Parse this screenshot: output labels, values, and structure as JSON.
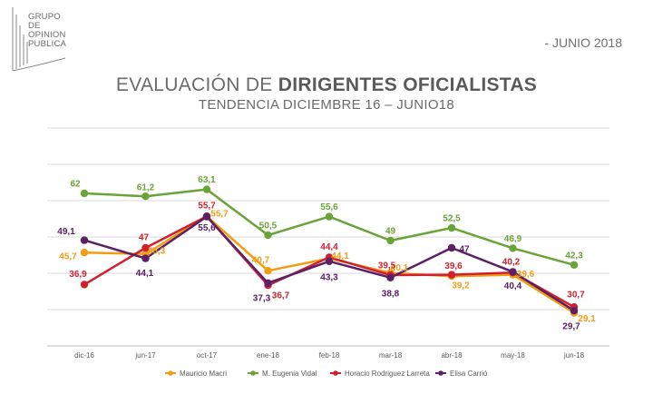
{
  "header": {
    "logo_lines": [
      "GRUPO",
      "DE",
      "OPINION",
      "PUBLICA"
    ],
    "report_date": "- JUNIO 2018"
  },
  "chart_data": {
    "type": "line",
    "title_prefix": "EVALUACIÓN DE ",
    "title_bold": "DIRIGENTES OFICIALISTAS",
    "subtitle": "TENDENCIA DICIEMBRE 16  – JUNIO18",
    "categories": [
      "dic-16",
      "jun-17",
      "oct-17",
      "ene-18",
      "feb-18",
      "mar-18",
      "abr-18",
      "may-18",
      "jun-18"
    ],
    "ylim": [
      20,
      80
    ],
    "grid": true,
    "legend_position": "bottom",
    "series": [
      {
        "name": "Mauricio Macri",
        "color": "#f39c12",
        "values": [
          45.7,
          45.3,
          55.7,
          40.7,
          44.1,
          40.1,
          39.2,
          39.6,
          29.1
        ],
        "labels": [
          "45,7",
          "45,3",
          "55,7",
          "40,7",
          "44,1",
          "40,1",
          "39,2",
          "39,6",
          "29,1"
        ]
      },
      {
        "name": "M. Eugenia Vidal",
        "color": "#6aa338",
        "values": [
          62,
          61.2,
          63.1,
          50.5,
          55.6,
          49,
          52.5,
          46.9,
          42.3
        ],
        "labels": [
          "62",
          "61,2",
          "63,1",
          "50,5",
          "55,6",
          "49",
          "52,5",
          "46,9",
          "42,3"
        ]
      },
      {
        "name": "Horacio Rodriguez Larreta",
        "color": "#d0202e",
        "values": [
          36.9,
          47,
          55.7,
          36.7,
          44.4,
          39.5,
          39.6,
          40.2,
          30.7
        ],
        "labels": [
          "36,9",
          "47",
          "55,7",
          "36,7",
          "44,4",
          "39,5",
          "39,6",
          "40,2",
          "30,7"
        ]
      },
      {
        "name": "Elisa Carrió",
        "color": "#5b2066",
        "values": [
          49.1,
          44.1,
          55.6,
          37.3,
          43.3,
          38.8,
          47,
          40.4,
          29.7
        ],
        "labels": [
          "49,1",
          "44,1",
          "55,6",
          "37,3",
          "43,3",
          "38,8",
          "47",
          "40,4",
          "29,7"
        ]
      }
    ]
  }
}
